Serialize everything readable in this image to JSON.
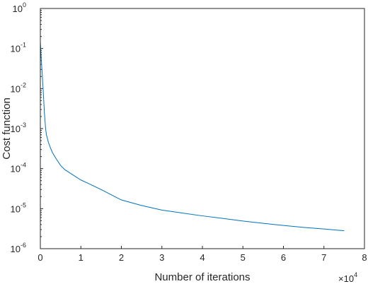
{
  "chart_data": {
    "type": "line",
    "title": "",
    "xlabel": "Number of iterations",
    "ylabel": "Cost function",
    "x_multiplier": {
      "base": "×10",
      "exponent": "4"
    },
    "xlim": [
      0,
      80000
    ],
    "ylim": [
      1e-06,
      1
    ],
    "yscale": "log",
    "grid": false,
    "x_ticks": [
      {
        "value": 0,
        "label": "0"
      },
      {
        "value": 10000,
        "label": "1"
      },
      {
        "value": 20000,
        "label": "2"
      },
      {
        "value": 30000,
        "label": "3"
      },
      {
        "value": 40000,
        "label": "4"
      },
      {
        "value": 50000,
        "label": "5"
      },
      {
        "value": 60000,
        "label": "6"
      },
      {
        "value": 70000,
        "label": "7"
      },
      {
        "value": 80000,
        "label": "8"
      }
    ],
    "y_ticks": [
      {
        "value": 1e-06,
        "base": "10",
        "exp": "-6"
      },
      {
        "value": 1e-05,
        "base": "10",
        "exp": "-5"
      },
      {
        "value": 0.0001,
        "base": "10",
        "exp": "-4"
      },
      {
        "value": 0.001,
        "base": "10",
        "exp": "-3"
      },
      {
        "value": 0.01,
        "base": "10",
        "exp": "-2"
      },
      {
        "value": 0.1,
        "base": "10",
        "exp": "-1"
      },
      {
        "value": 1,
        "base": "10",
        "exp": "0"
      }
    ],
    "series": [
      {
        "color": "#0072BD",
        "x": [
          0,
          200,
          500,
          800,
          1000,
          1300,
          1500,
          2000,
          2500,
          3000,
          4000,
          5000,
          6000,
          8000,
          10000,
          12000,
          15000,
          20000,
          25000,
          30000,
          35000,
          40000,
          45000,
          50000,
          55000,
          60000,
          65000,
          70000,
          75000
        ],
        "y": [
          0.15,
          0.06,
          0.02,
          0.006,
          0.0025,
          0.001,
          0.0007,
          0.00045,
          0.00033,
          0.00025,
          0.00017,
          0.00012,
          9.5e-05,
          7e-05,
          5.2e-05,
          4.2e-05,
          3e-05,
          1.65e-05,
          1.2e-05,
          9.2e-06,
          7.8e-06,
          6.6e-06,
          5.7e-06,
          4.9e-06,
          4.3e-06,
          3.8e-06,
          3.4e-06,
          3.1e-06,
          2.8e-06
        ]
      }
    ]
  }
}
